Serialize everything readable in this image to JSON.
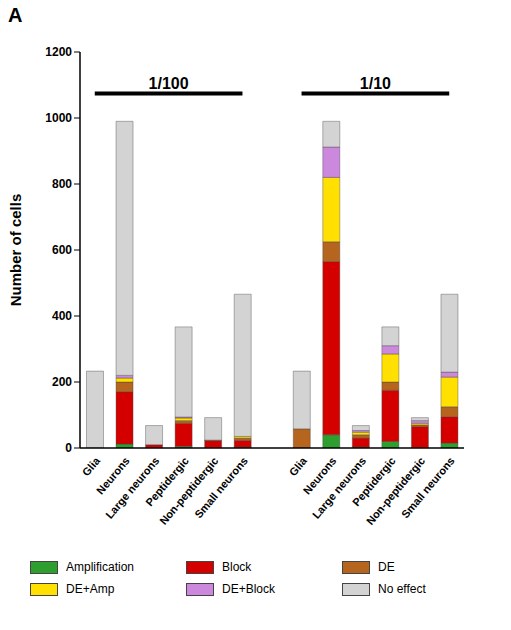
{
  "chart_data": {
    "type": "bar",
    "stacked": true,
    "panel": "A",
    "y_label": "Number of cells",
    "categories": [
      "Glia",
      "Neurons",
      "Large neurons",
      "Peptidergic",
      "Non-peptidergic",
      "Small neurons",
      null,
      "Glia",
      "Neurons",
      "Large neurons",
      "Peptidergic",
      "Non-peptidergic",
      "Small neurons"
    ],
    "annotations": [
      {
        "text": "1/100",
        "from": 0,
        "to": 5
      },
      {
        "text": "1/10",
        "from": 7,
        "to": 12
      }
    ],
    "series": [
      {
        "name": "Amplification",
        "color": "#2e9e2e",
        "values": [
          0,
          12,
          0,
          5,
          0,
          3,
          null,
          0,
          40,
          3,
          20,
          0,
          15
        ]
      },
      {
        "name": "Block",
        "color": "#d40000",
        "values": [
          0,
          158,
          10,
          70,
          22,
          20,
          null,
          0,
          525,
          27,
          155,
          65,
          80
        ]
      },
      {
        "name": "DE",
        "color": "#b5651d",
        "values": [
          0,
          30,
          0,
          8,
          2,
          7,
          null,
          58,
          60,
          10,
          25,
          5,
          30
        ]
      },
      {
        "name": "DE+Amp",
        "color": "#ffe000",
        "values": [
          0,
          12,
          0,
          8,
          0,
          5,
          null,
          0,
          195,
          8,
          85,
          5,
          90
        ]
      },
      {
        "name": "DE+Block",
        "color": "#cc88dd",
        "values": [
          0,
          8,
          0,
          3,
          0,
          0,
          null,
          0,
          92,
          5,
          25,
          8,
          15
        ]
      },
      {
        "name": "No effect",
        "color": "#d3d3d3",
        "values": [
          233,
          770,
          58,
          273,
          68,
          431,
          null,
          175,
          78,
          15,
          57,
          9,
          236
        ]
      }
    ],
    "ylim": [
      0,
      1200
    ],
    "yticks": [
      0,
      200,
      400,
      600,
      800,
      1000,
      1200
    ],
    "grid": false,
    "legend": "bottom"
  }
}
